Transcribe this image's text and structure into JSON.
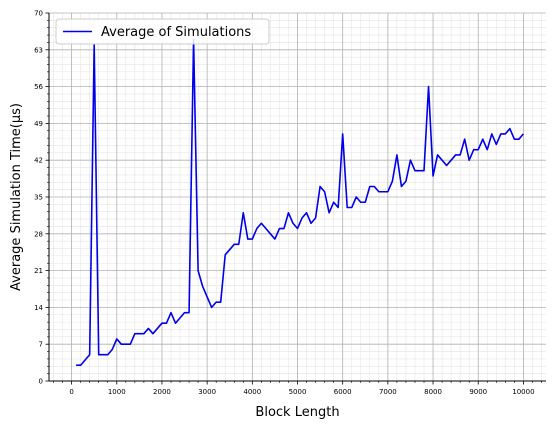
{
  "chart_data": {
    "type": "line",
    "title": "",
    "xlabel": "Block Length",
    "ylabel": "Average Simulation Time(μs)",
    "xlim": [
      -500,
      10500
    ],
    "ylim": [
      0,
      70
    ],
    "xticks": [
      0,
      1000,
      2000,
      3000,
      4000,
      5000,
      6000,
      7000,
      8000,
      9000,
      10000
    ],
    "yticks": [
      0,
      7,
      14,
      21,
      28,
      35,
      42,
      49,
      56,
      63,
      70
    ],
    "grid": true,
    "minor_grid": true,
    "legend_position": "top-left",
    "series": [
      {
        "name": "Average of Simulations",
        "color": "#0000ee",
        "x": [
          100,
          200,
          300,
          400,
          500,
          600,
          700,
          800,
          900,
          1000,
          1100,
          1200,
          1300,
          1400,
          1500,
          1600,
          1700,
          1800,
          1900,
          2000,
          2100,
          2200,
          2300,
          2400,
          2500,
          2600,
          2700,
          2800,
          2900,
          3000,
          3100,
          3200,
          3300,
          3400,
          3500,
          3600,
          3700,
          3800,
          3900,
          4000,
          4100,
          4200,
          4300,
          4400,
          4500,
          4600,
          4700,
          4800,
          4900,
          5000,
          5100,
          5200,
          5300,
          5400,
          5500,
          5600,
          5700,
          5800,
          5900,
          6000,
          6100,
          6200,
          6300,
          6400,
          6500,
          6600,
          6700,
          6800,
          6900,
          7000,
          7100,
          7200,
          7300,
          7400,
          7500,
          7600,
          7700,
          7800,
          7900,
          8000,
          8100,
          8200,
          8300,
          8400,
          8500,
          8600,
          8700,
          8800,
          8900,
          9000,
          9100,
          9200,
          9300,
          9400,
          9500,
          9600,
          9700,
          9800,
          9900,
          10000
        ],
        "y": [
          3,
          3,
          4,
          5,
          64,
          5,
          5,
          5,
          6,
          8,
          7,
          7,
          7,
          9,
          9,
          9,
          10,
          9,
          10,
          11,
          11,
          13,
          11,
          12,
          13,
          13,
          65,
          21,
          18,
          16,
          14,
          15,
          15,
          24,
          25,
          26,
          26,
          32,
          27,
          27,
          29,
          30,
          29,
          28,
          27,
          29,
          29,
          32,
          30,
          29,
          31,
          32,
          30,
          31,
          37,
          36,
          32,
          34,
          33,
          47,
          33,
          33,
          35,
          34,
          34,
          37,
          37,
          36,
          36,
          36,
          38,
          43,
          37,
          38,
          42,
          40,
          40,
          40,
          56,
          39,
          43,
          42,
          41,
          42,
          43,
          43,
          46,
          42,
          44,
          44,
          46,
          44,
          47,
          45,
          47,
          47,
          48,
          46,
          46,
          47
        ]
      }
    ]
  }
}
